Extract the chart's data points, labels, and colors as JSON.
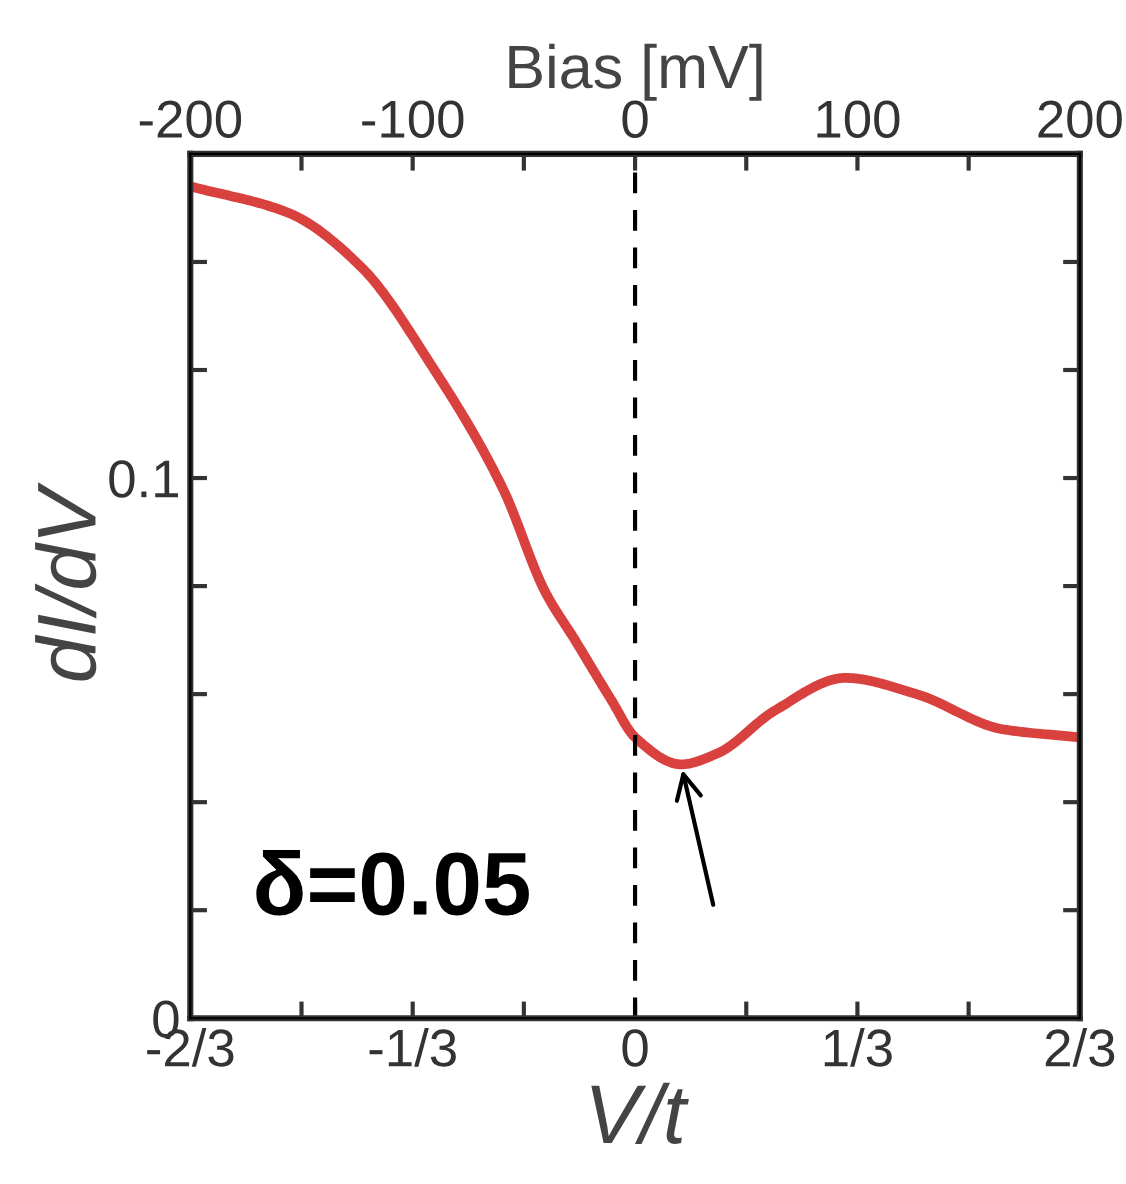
{
  "chart_data": {
    "type": "line",
    "xlabel": "V/t",
    "ylabel": "dI/dV",
    "x2label": "Bias [mV]",
    "x": [
      -0.6667,
      -0.518,
      -0.41,
      -0.306,
      -0.198,
      -0.135,
      -0.09,
      -0.036,
      0,
      0.069,
      0.123,
      0.21,
      0.315,
      0.422,
      0.551,
      0.6667
    ],
    "series": [
      {
        "color": "#d9413f",
        "values": [
          0.154,
          0.149,
          0.139,
          0.121,
          0.098,
          0.079,
          0.07,
          0.059,
          0.052,
          0.047,
          0.049,
          0.057,
          0.063,
          0.06,
          0.0535,
          0.052
        ]
      }
    ],
    "xlim": [
      -0.6667,
      0.6667
    ],
    "xticks": [
      {
        "value": -0.6667,
        "label": "-2/3"
      },
      {
        "value": -0.5,
        "label": null
      },
      {
        "value": -0.3333,
        "label": "-1/3"
      },
      {
        "value": -0.1667,
        "label": null
      },
      {
        "value": 0,
        "label": "0"
      },
      {
        "value": 0.1667,
        "label": null
      },
      {
        "value": 0.3333,
        "label": "1/3"
      },
      {
        "value": 0.5,
        "label": null
      },
      {
        "value": 0.6667,
        "label": "2/3"
      }
    ],
    "x2lim": [
      -200,
      200
    ],
    "x2ticks": [
      -200,
      {
        "value": -150,
        "label": null
      },
      -100,
      {
        "value": -50,
        "label": null
      },
      0,
      {
        "value": 50,
        "label": null
      },
      100,
      {
        "value": 150,
        "label": null
      },
      200
    ],
    "ylim": [
      0,
      0.16
    ],
    "yticks": [
      0,
      {
        "value": 0.02,
        "label": null
      },
      {
        "value": 0.04,
        "label": null
      },
      {
        "value": 0.06,
        "label": null
      },
      {
        "value": 0.08,
        "label": null
      },
      0.1,
      {
        "value": 0.12,
        "label": null
      },
      {
        "value": 0.14,
        "label": null
      },
      {
        "value": 0.16,
        "label": null
      }
    ],
    "ref_lines": [
      {
        "axis": "x",
        "value": 0,
        "color": "#000000",
        "line_style": "dashed"
      }
    ],
    "annotations": [
      "δ=0.05"
    ],
    "grid": false,
    "legend": false,
    "marker": "none",
    "line_style": "solid"
  }
}
